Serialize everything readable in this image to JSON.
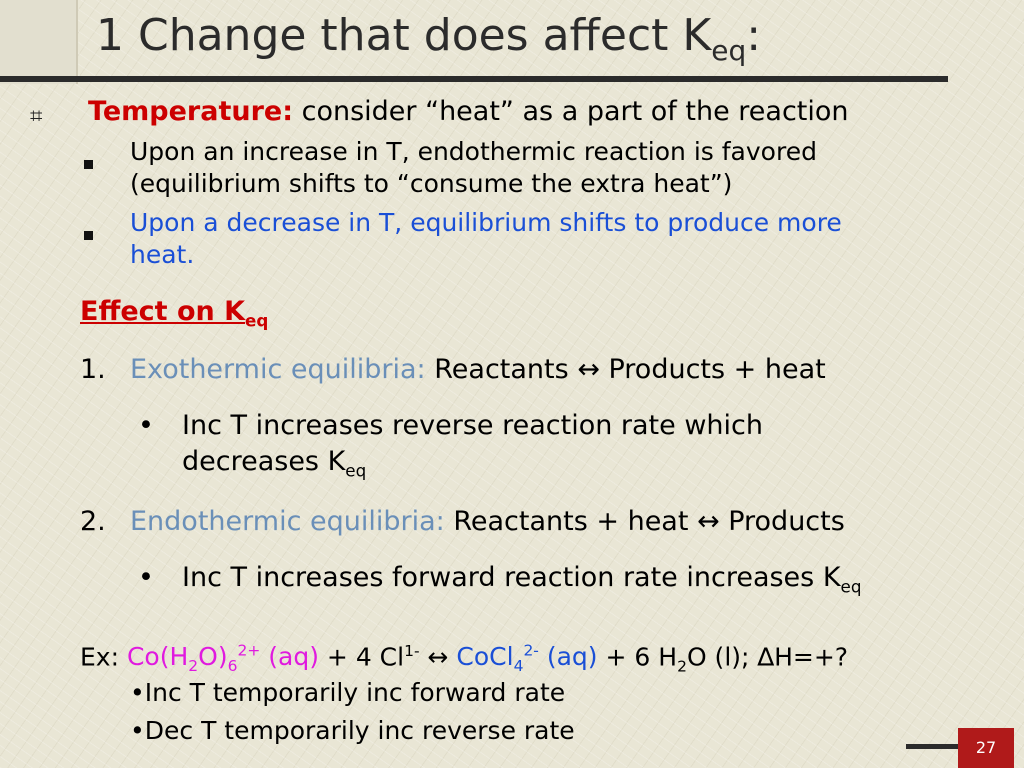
{
  "title": {
    "main": "1 Change that does affect K",
    "sub": "eq",
    "colon": ":"
  },
  "bullet_main": {
    "label": "Temperature:",
    "text": "consider “heat” as a part of the reaction"
  },
  "sub_bullets": [
    {
      "line1": "Upon an increase in T, endothermic reaction is favored",
      "line2": "(equilibrium shifts to “consume the extra heat”)"
    },
    {
      "line1": "Upon a decrease in T, equilibrium shifts to produce more",
      "line2": "heat."
    }
  ],
  "effect_heading": {
    "text": "Effect on K",
    "sub": "eq"
  },
  "items": [
    {
      "num": "1.",
      "label": "Exothermic equilibria:",
      "eq": "Reactants ↔ Products + heat",
      "bullet_line1": "Inc T increases reverse reaction rate which",
      "bullet_line2": "decreases K",
      "bullet_sub": "eq"
    },
    {
      "num": "2.",
      "label": "Endothermic equilibria:",
      "eq": "Reactants + heat ↔ Products",
      "bullet_line1": "Inc T increases forward reaction rate increases K",
      "bullet_sub": "eq"
    }
  ],
  "example": {
    "prefix": "Ex:",
    "line1": "Inc T temporarily inc forward rate",
    "line2": "Dec T temporarily inc reverse rate"
  },
  "page_number": "27",
  "colors": {
    "red": "#cc0000",
    "blue": "#1a4fd6",
    "steel": "#6a8fb8",
    "magenta": "#e01adf",
    "footer": "#b01a1a"
  }
}
